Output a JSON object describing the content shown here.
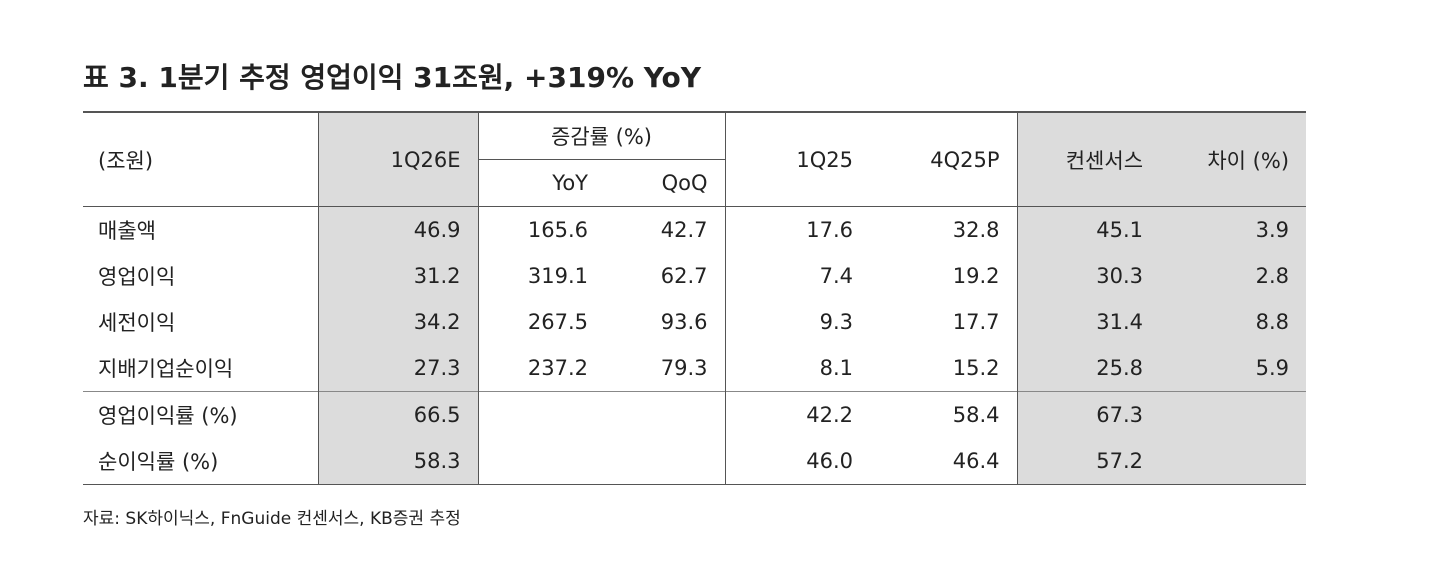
{
  "title": "표 3. 1분기 추정 영업이익 31조원, +319% YoY",
  "table": {
    "header": {
      "label": "(조원)",
      "col1": "1Q26E",
      "group": "증감률 (%)",
      "sub": [
        "YoY",
        "QoQ"
      ],
      "rest": [
        "1Q25",
        "4Q25P",
        "컨센서스",
        "차이 (%)"
      ]
    },
    "rows": [
      [
        "매출액",
        "46.9",
        "165.6",
        "42.7",
        "17.6",
        "32.8",
        "45.1",
        "3.9"
      ],
      [
        "영업이익",
        "31.2",
        "319.1",
        "62.7",
        "7.4",
        "19.2",
        "30.3",
        "2.8"
      ],
      [
        "세전이익",
        "34.2",
        "267.5",
        "93.6",
        "9.3",
        "17.7",
        "31.4",
        "8.8"
      ],
      [
        "지배기업순이익",
        "27.3",
        "237.2",
        "79.3",
        "8.1",
        "15.2",
        "25.8",
        "5.9"
      ],
      [
        "영업이익률 (%)",
        "66.5",
        null,
        null,
        "42.2",
        "58.4",
        "67.3",
        null
      ],
      [
        "순이익률 (%)",
        "58.3",
        null,
        null,
        "46.0",
        "46.4",
        "57.2",
        null
      ]
    ]
  },
  "source": "자료: SK하이닉스, FnGuide 컨센서스, KB증권 추정"
}
